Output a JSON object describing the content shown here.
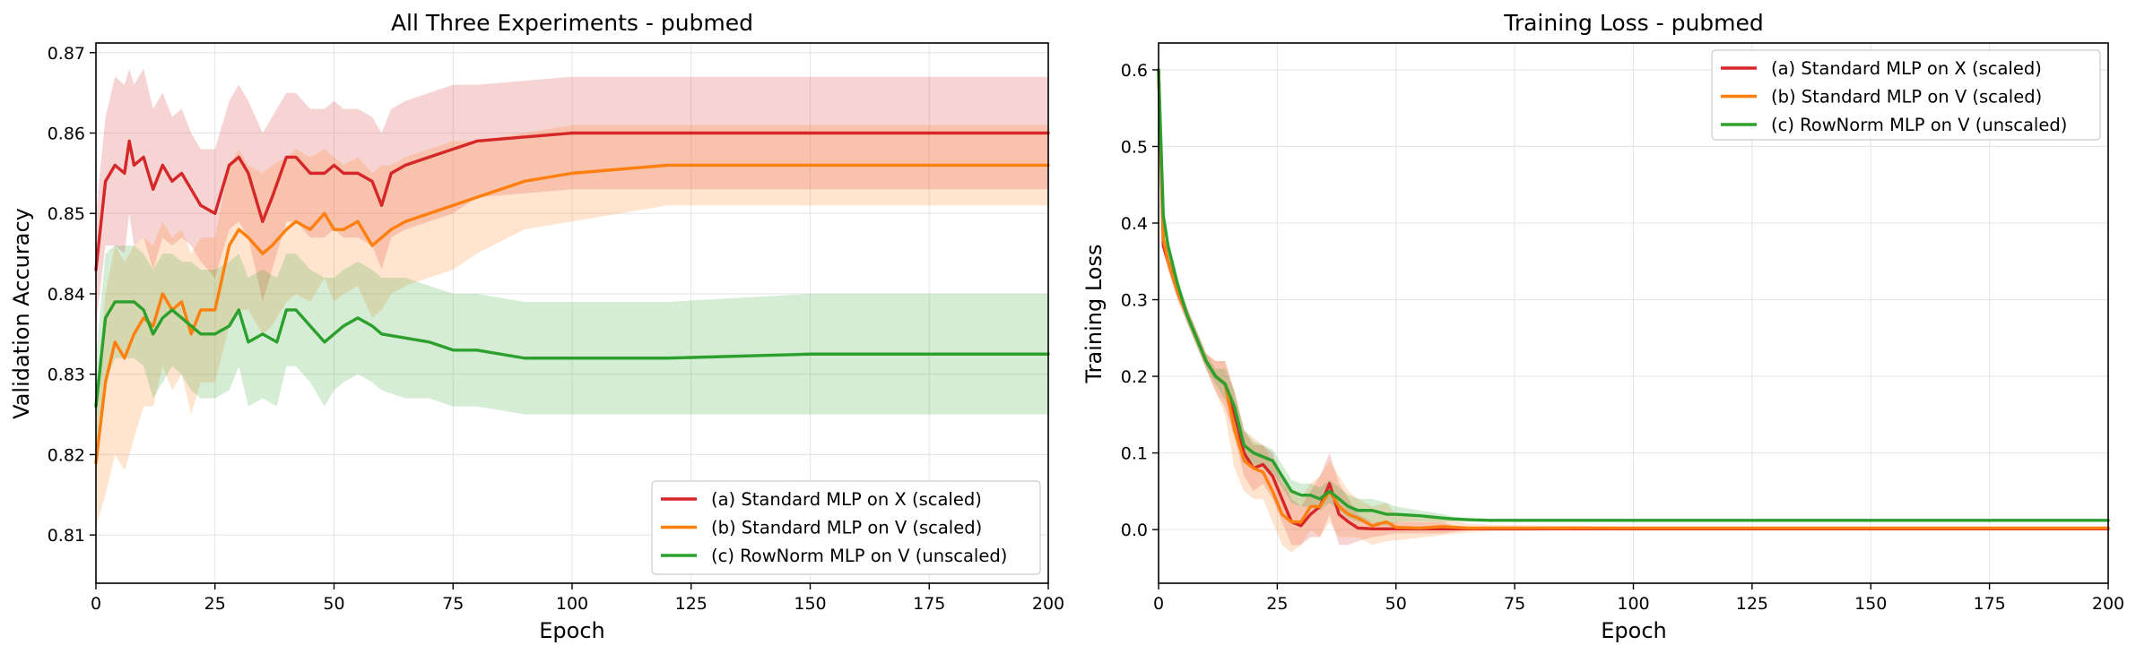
{
  "colors": {
    "a": "#d62728",
    "b": "#ff7f0e",
    "c": "#2ca02c",
    "grid": "#e6e6e6",
    "frame": "#000000"
  },
  "chart_data": [
    {
      "type": "line",
      "title": "All Three Experiments - pubmed",
      "xlabel": "Epoch",
      "ylabel": "Validation Accuracy",
      "xlim": [
        0,
        200
      ],
      "ylim": [
        0.804,
        0.8712
      ],
      "xticks": [
        0,
        25,
        50,
        75,
        100,
        125,
        150,
        175,
        200
      ],
      "yticks": [
        0.81,
        0.82,
        0.83,
        0.84,
        0.85,
        0.86,
        0.87
      ],
      "ytick_labels": [
        "0.81",
        "0.82",
        "0.83",
        "0.84",
        "0.85",
        "0.86",
        "0.87"
      ],
      "grid": true,
      "legend_position": "lower right",
      "shaded_band": "mean ± std",
      "series": [
        {
          "name": "(a) Standard MLP on X (scaled)",
          "x": [
            0,
            2,
            4,
            6,
            7,
            8,
            10,
            12,
            14,
            16,
            18,
            20,
            22,
            25,
            28,
            30,
            32,
            35,
            37,
            40,
            42,
            45,
            48,
            50,
            52,
            55,
            58,
            60,
            62,
            65,
            70,
            75,
            80,
            90,
            100,
            120,
            150,
            175,
            200
          ],
          "y": [
            0.843,
            0.854,
            0.856,
            0.855,
            0.859,
            0.856,
            0.857,
            0.853,
            0.856,
            0.854,
            0.855,
            0.853,
            0.851,
            0.85,
            0.856,
            0.857,
            0.855,
            0.849,
            0.852,
            0.857,
            0.857,
            0.855,
            0.855,
            0.856,
            0.855,
            0.855,
            0.854,
            0.851,
            0.855,
            0.856,
            0.857,
            0.858,
            0.859,
            0.8595,
            0.86,
            0.86,
            0.86,
            0.86,
            0.86
          ],
          "upper": [
            0.85,
            0.862,
            0.867,
            0.866,
            0.868,
            0.866,
            0.868,
            0.863,
            0.865,
            0.862,
            0.863,
            0.86,
            0.858,
            0.858,
            0.864,
            0.866,
            0.864,
            0.86,
            0.862,
            0.865,
            0.865,
            0.863,
            0.863,
            0.864,
            0.863,
            0.863,
            0.862,
            0.86,
            0.863,
            0.864,
            0.865,
            0.866,
            0.866,
            0.8665,
            0.867,
            0.867,
            0.867,
            0.867,
            0.867
          ],
          "lower": [
            0.836,
            0.846,
            0.846,
            0.845,
            0.85,
            0.846,
            0.847,
            0.843,
            0.847,
            0.846,
            0.847,
            0.846,
            0.844,
            0.842,
            0.848,
            0.849,
            0.847,
            0.839,
            0.843,
            0.849,
            0.849,
            0.847,
            0.847,
            0.848,
            0.847,
            0.847,
            0.846,
            0.843,
            0.847,
            0.848,
            0.849,
            0.85,
            0.852,
            0.8525,
            0.853,
            0.853,
            0.853,
            0.853,
            0.853
          ]
        },
        {
          "name": "(b) Standard MLP on V (scaled)",
          "x": [
            0,
            2,
            4,
            6,
            8,
            10,
            12,
            14,
            16,
            18,
            20,
            22,
            25,
            28,
            30,
            32,
            35,
            37,
            40,
            42,
            45,
            48,
            50,
            52,
            55,
            58,
            60,
            62,
            65,
            70,
            75,
            80,
            90,
            100,
            120,
            150,
            175,
            200
          ],
          "y": [
            0.819,
            0.829,
            0.834,
            0.832,
            0.835,
            0.837,
            0.836,
            0.84,
            0.838,
            0.839,
            0.835,
            0.838,
            0.838,
            0.846,
            0.848,
            0.847,
            0.845,
            0.846,
            0.848,
            0.849,
            0.848,
            0.85,
            0.848,
            0.848,
            0.849,
            0.846,
            0.847,
            0.848,
            0.849,
            0.85,
            0.851,
            0.852,
            0.854,
            0.855,
            0.856,
            0.856,
            0.856,
            0.856
          ],
          "upper": [
            0.827,
            0.84,
            0.846,
            0.844,
            0.846,
            0.847,
            0.846,
            0.849,
            0.847,
            0.848,
            0.845,
            0.847,
            0.847,
            0.856,
            0.858,
            0.856,
            0.855,
            0.856,
            0.857,
            0.858,
            0.857,
            0.858,
            0.857,
            0.856,
            0.857,
            0.855,
            0.856,
            0.856,
            0.857,
            0.858,
            0.859,
            0.859,
            0.86,
            0.861,
            0.861,
            0.861,
            0.861,
            0.861
          ],
          "lower": [
            0.811,
            0.815,
            0.82,
            0.818,
            0.822,
            0.826,
            0.826,
            0.831,
            0.828,
            0.83,
            0.825,
            0.829,
            0.829,
            0.836,
            0.838,
            0.838,
            0.835,
            0.836,
            0.839,
            0.84,
            0.839,
            0.842,
            0.839,
            0.84,
            0.841,
            0.837,
            0.838,
            0.84,
            0.841,
            0.842,
            0.843,
            0.845,
            0.848,
            0.849,
            0.851,
            0.851,
            0.851,
            0.851
          ]
        },
        {
          "name": "(c) RowNorm MLP on V (unscaled)",
          "x": [
            0,
            2,
            4,
            6,
            8,
            10,
            12,
            14,
            16,
            18,
            20,
            22,
            25,
            28,
            30,
            32,
            35,
            38,
            40,
            42,
            45,
            48,
            50,
            52,
            55,
            58,
            60,
            65,
            70,
            75,
            80,
            90,
            100,
            110,
            120,
            150,
            175,
            200
          ],
          "y": [
            0.826,
            0.837,
            0.839,
            0.839,
            0.839,
            0.838,
            0.835,
            0.837,
            0.838,
            0.837,
            0.836,
            0.835,
            0.835,
            0.836,
            0.838,
            0.834,
            0.835,
            0.834,
            0.838,
            0.838,
            0.836,
            0.834,
            0.835,
            0.836,
            0.837,
            0.836,
            0.835,
            0.8345,
            0.834,
            0.833,
            0.833,
            0.832,
            0.832,
            0.832,
            0.832,
            0.8325,
            0.8325,
            0.8325
          ],
          "upper": [
            0.832,
            0.845,
            0.846,
            0.846,
            0.846,
            0.845,
            0.843,
            0.845,
            0.845,
            0.844,
            0.844,
            0.843,
            0.843,
            0.844,
            0.845,
            0.842,
            0.843,
            0.842,
            0.845,
            0.845,
            0.843,
            0.842,
            0.842,
            0.843,
            0.844,
            0.843,
            0.842,
            0.842,
            0.841,
            0.84,
            0.84,
            0.839,
            0.839,
            0.839,
            0.839,
            0.84,
            0.84,
            0.84
          ],
          "lower": [
            0.82,
            0.829,
            0.832,
            0.832,
            0.832,
            0.831,
            0.827,
            0.829,
            0.831,
            0.83,
            0.828,
            0.827,
            0.827,
            0.828,
            0.831,
            0.826,
            0.827,
            0.826,
            0.831,
            0.831,
            0.829,
            0.826,
            0.828,
            0.829,
            0.83,
            0.829,
            0.828,
            0.827,
            0.827,
            0.826,
            0.826,
            0.825,
            0.825,
            0.825,
            0.825,
            0.825,
            0.825,
            0.825
          ]
        }
      ]
    },
    {
      "type": "line",
      "title": "Training Loss - pubmed",
      "xlabel": "Epoch",
      "ylabel": "Training Loss",
      "xlim": [
        0,
        200
      ],
      "ylim": [
        -0.07,
        0.635
      ],
      "xticks": [
        0,
        25,
        50,
        75,
        100,
        125,
        150,
        175,
        200
      ],
      "yticks": [
        0.0,
        0.1,
        0.2,
        0.3,
        0.4,
        0.5,
        0.6
      ],
      "ytick_labels": [
        "0.0",
        "0.1",
        "0.2",
        "0.3",
        "0.4",
        "0.5",
        "0.6"
      ],
      "grid": true,
      "legend_position": "upper right",
      "shaded_band": "mean ± std",
      "series": [
        {
          "name": "(a) Standard MLP on X (scaled)",
          "x": [
            0,
            1,
            2,
            4,
            6,
            8,
            10,
            12,
            14,
            16,
            18,
            20,
            22,
            24,
            26,
            28,
            30,
            32,
            34,
            36,
            38,
            40,
            42,
            45,
            50,
            55,
            60,
            62,
            65,
            70,
            100,
            150,
            200
          ],
          "y": [
            0.6,
            0.37,
            0.35,
            0.31,
            0.28,
            0.25,
            0.22,
            0.2,
            0.19,
            0.15,
            0.1,
            0.08,
            0.085,
            0.07,
            0.04,
            0.01,
            0.005,
            0.02,
            0.03,
            0.06,
            0.02,
            0.01,
            0.002,
            0.001,
            0.001,
            0.001,
            0.001,
            0.001,
            0.001,
            0.001,
            0.001,
            0.001,
            0.001
          ],
          "upper": [
            0.61,
            0.38,
            0.36,
            0.32,
            0.29,
            0.26,
            0.23,
            0.22,
            0.22,
            0.18,
            0.13,
            0.11,
            0.11,
            0.1,
            0.07,
            0.04,
            0.03,
            0.05,
            0.07,
            0.1,
            0.06,
            0.04,
            0.02,
            0.01,
            0.01,
            0.01,
            0.01,
            0.005,
            0.003,
            0.002,
            0.002,
            0.002,
            0.002
          ],
          "lower": [
            0.59,
            0.36,
            0.34,
            0.3,
            0.27,
            0.24,
            0.21,
            0.18,
            0.16,
            0.12,
            0.07,
            0.05,
            0.06,
            0.04,
            0.01,
            -0.02,
            -0.02,
            -0.01,
            -0.01,
            0.02,
            -0.02,
            -0.02,
            -0.015,
            -0.01,
            -0.005,
            -0.005,
            -0.005,
            -0.003,
            -0.001,
            0.0,
            0.0,
            0.0,
            0.0
          ]
        },
        {
          "name": "(b) Standard MLP on V (scaled)",
          "x": [
            0,
            1,
            2,
            4,
            6,
            8,
            10,
            12,
            14,
            16,
            18,
            20,
            22,
            24,
            26,
            28,
            30,
            32,
            34,
            36,
            38,
            40,
            42,
            45,
            48,
            50,
            55,
            60,
            65,
            70,
            100,
            150,
            200
          ],
          "y": [
            0.6,
            0.38,
            0.35,
            0.31,
            0.28,
            0.25,
            0.22,
            0.2,
            0.19,
            0.13,
            0.09,
            0.08,
            0.075,
            0.05,
            0.02,
            0.01,
            0.01,
            0.03,
            0.03,
            0.05,
            0.03,
            0.02,
            0.015,
            0.005,
            0.01,
            0.003,
            0.002,
            0.004,
            0.002,
            0.002,
            0.002,
            0.002,
            0.002
          ],
          "upper": [
            0.61,
            0.39,
            0.36,
            0.32,
            0.29,
            0.26,
            0.23,
            0.22,
            0.22,
            0.18,
            0.13,
            0.12,
            0.11,
            0.09,
            0.06,
            0.05,
            0.04,
            0.06,
            0.07,
            0.09,
            0.07,
            0.05,
            0.04,
            0.03,
            0.035,
            0.02,
            0.015,
            0.015,
            0.008,
            0.006,
            0.004,
            0.004,
            0.004
          ],
          "lower": [
            0.59,
            0.37,
            0.34,
            0.3,
            0.27,
            0.24,
            0.21,
            0.18,
            0.15,
            0.08,
            0.05,
            0.04,
            0.04,
            0.01,
            -0.02,
            -0.03,
            -0.02,
            0.0,
            -0.01,
            0.01,
            -0.01,
            -0.01,
            -0.01,
            -0.02,
            -0.015,
            -0.014,
            -0.011,
            -0.007,
            -0.004,
            -0.002,
            0.0,
            0.0,
            0.0
          ]
        },
        {
          "name": "(c) RowNorm MLP on V (unscaled)",
          "x": [
            0,
            1,
            2,
            4,
            6,
            8,
            10,
            12,
            14,
            16,
            18,
            20,
            22,
            24,
            26,
            28,
            30,
            32,
            34,
            36,
            38,
            40,
            42,
            45,
            48,
            50,
            55,
            60,
            62,
            65,
            70,
            100,
            150,
            200
          ],
          "y": [
            0.6,
            0.41,
            0.37,
            0.32,
            0.28,
            0.25,
            0.22,
            0.2,
            0.19,
            0.16,
            0.11,
            0.1,
            0.095,
            0.09,
            0.07,
            0.05,
            0.045,
            0.045,
            0.04,
            0.05,
            0.04,
            0.03,
            0.025,
            0.025,
            0.02,
            0.02,
            0.018,
            0.015,
            0.014,
            0.013,
            0.012,
            0.012,
            0.012,
            0.012
          ],
          "upper": [
            0.61,
            0.42,
            0.38,
            0.33,
            0.29,
            0.26,
            0.23,
            0.21,
            0.21,
            0.18,
            0.13,
            0.115,
            0.11,
            0.105,
            0.085,
            0.065,
            0.06,
            0.06,
            0.055,
            0.065,
            0.055,
            0.045,
            0.04,
            0.04,
            0.035,
            0.03,
            0.025,
            0.02,
            0.017,
            0.015,
            0.014,
            0.014,
            0.014,
            0.014
          ],
          "lower": [
            0.59,
            0.4,
            0.36,
            0.31,
            0.27,
            0.24,
            0.21,
            0.19,
            0.17,
            0.14,
            0.09,
            0.085,
            0.08,
            0.075,
            0.055,
            0.035,
            0.03,
            0.03,
            0.025,
            0.035,
            0.025,
            0.015,
            0.01,
            0.01,
            0.005,
            0.01,
            0.011,
            0.01,
            0.011,
            0.011,
            0.01,
            0.01,
            0.01,
            0.01
          ]
        }
      ]
    }
  ]
}
